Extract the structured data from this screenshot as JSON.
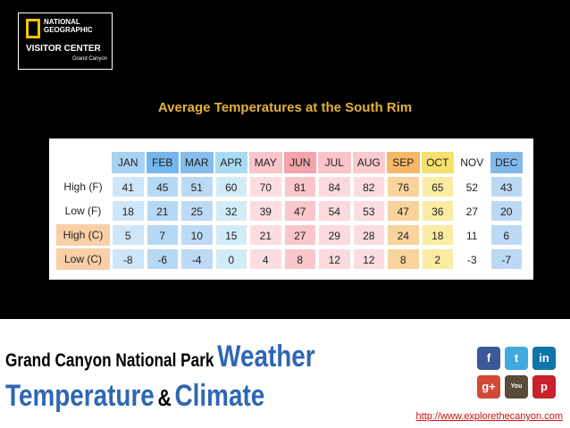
{
  "logo": {
    "line1": "NATIONAL",
    "line2": "GEOGRAPHIC",
    "line3": "VISITOR CENTER",
    "line4": "Grand Canyon"
  },
  "title": "Average Temperatures at the South Rim",
  "table": {
    "columns": [
      "JAN",
      "FEB",
      "MAR",
      "APR",
      "MAY",
      "JUN",
      "JUL",
      "AUG",
      "SEP",
      "OCT",
      "NOV",
      "DEC"
    ],
    "rows": [
      {
        "label": "High (F)",
        "values": [
          41,
          45,
          51,
          60,
          70,
          81,
          84,
          82,
          76,
          65,
          52,
          43
        ]
      },
      {
        "label": "Low (F)",
        "values": [
          18,
          21,
          25,
          32,
          39,
          47,
          54,
          53,
          47,
          36,
          27,
          20
        ]
      },
      {
        "label": "High (C)",
        "values": [
          5,
          7,
          10,
          15,
          21,
          27,
          29,
          28,
          24,
          18,
          11,
          6
        ]
      },
      {
        "label": "Low (C)",
        "values": [
          -8,
          -6,
          -4,
          0,
          4,
          8,
          12,
          12,
          8,
          2,
          -3,
          -7
        ]
      }
    ]
  },
  "footer": {
    "line1a": "Grand Canyon National Park",
    "line1b": "Weather",
    "line2a": "Temperature",
    "line2b": "&",
    "line2c": "Climate"
  },
  "social": [
    "f",
    "t",
    "in",
    "g+",
    "You Tube",
    "p"
  ],
  "url": "http://www.explorethecanyon.com"
}
